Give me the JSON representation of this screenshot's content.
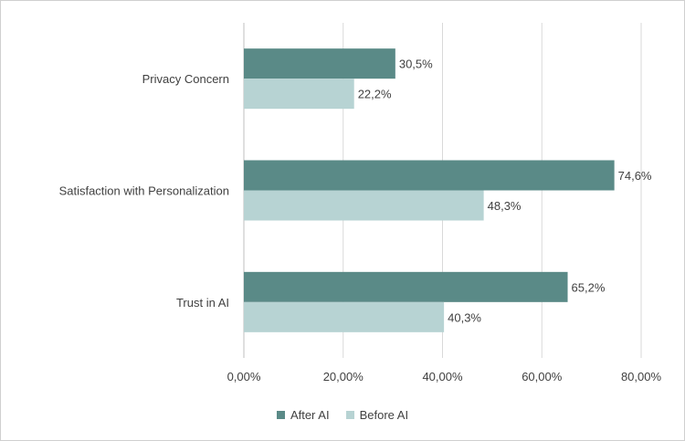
{
  "chart_data": {
    "type": "bar",
    "orientation": "horizontal",
    "categories": [
      "Privacy Concern",
      "Satisfaction with Personalization",
      "Trust in AI"
    ],
    "series": [
      {
        "name": "After AI",
        "values": [
          30.5,
          74.6,
          65.2
        ],
        "labels": [
          "30,5%",
          "74,6%",
          "65,2%"
        ],
        "color": "#5a8a87"
      },
      {
        "name": "Before AI",
        "values": [
          22.2,
          48.3,
          40.3
        ],
        "labels": [
          "22,2%",
          "48,3%",
          "40,3%"
        ],
        "color": "#b7d3d3"
      }
    ],
    "xlim": [
      0,
      80
    ],
    "xticks": [
      0,
      20,
      40,
      60,
      80
    ],
    "xtick_labels": [
      "0,00%",
      "20,00%",
      "40,00%",
      "60,00%",
      "80,00%"
    ],
    "grid": true,
    "legend_position": "bottom",
    "title": "",
    "xlabel": "",
    "ylabel": ""
  }
}
